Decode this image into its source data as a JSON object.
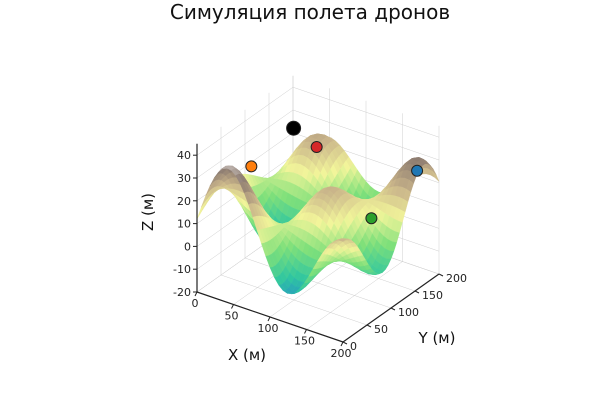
{
  "chart_data": {
    "type": "surface3d",
    "title": "Симуляция полета дронов",
    "xlabel": "X (м)",
    "ylabel": "Y (м)",
    "zlabel": "Z (м)",
    "xlim": [
      0,
      200
    ],
    "ylim": [
      0,
      200
    ],
    "zlim": [
      -20,
      45
    ],
    "xticks": [
      "0",
      "50",
      "100",
      "150",
      "200"
    ],
    "yticks": [
      "0",
      "50",
      "100",
      "150",
      "200"
    ],
    "zticks": [
      "-20",
      "-10",
      "0",
      "10",
      "20",
      "30",
      "40"
    ],
    "grid": true,
    "legend": "none",
    "colormap": [
      "#1f6fe0",
      "#2fc6a0",
      "#7fe07a",
      "#f2f59a",
      "#c9b48a",
      "#8c7b70",
      "#f2eeee"
    ],
    "drones": [
      {
        "x": 35,
        "y": 60,
        "z": 30,
        "color": "#ff7f0e"
      },
      {
        "x": 60,
        "y": 110,
        "z": 42,
        "color": "#000000"
      },
      {
        "x": 85,
        "y": 120,
        "z": 35,
        "color": "#d62728"
      },
      {
        "x": 160,
        "y": 120,
        "z": 12,
        "color": "#2ca02c"
      },
      {
        "x": 170,
        "y": 200,
        "z": 22,
        "color": "#1f77b4"
      }
    ]
  }
}
